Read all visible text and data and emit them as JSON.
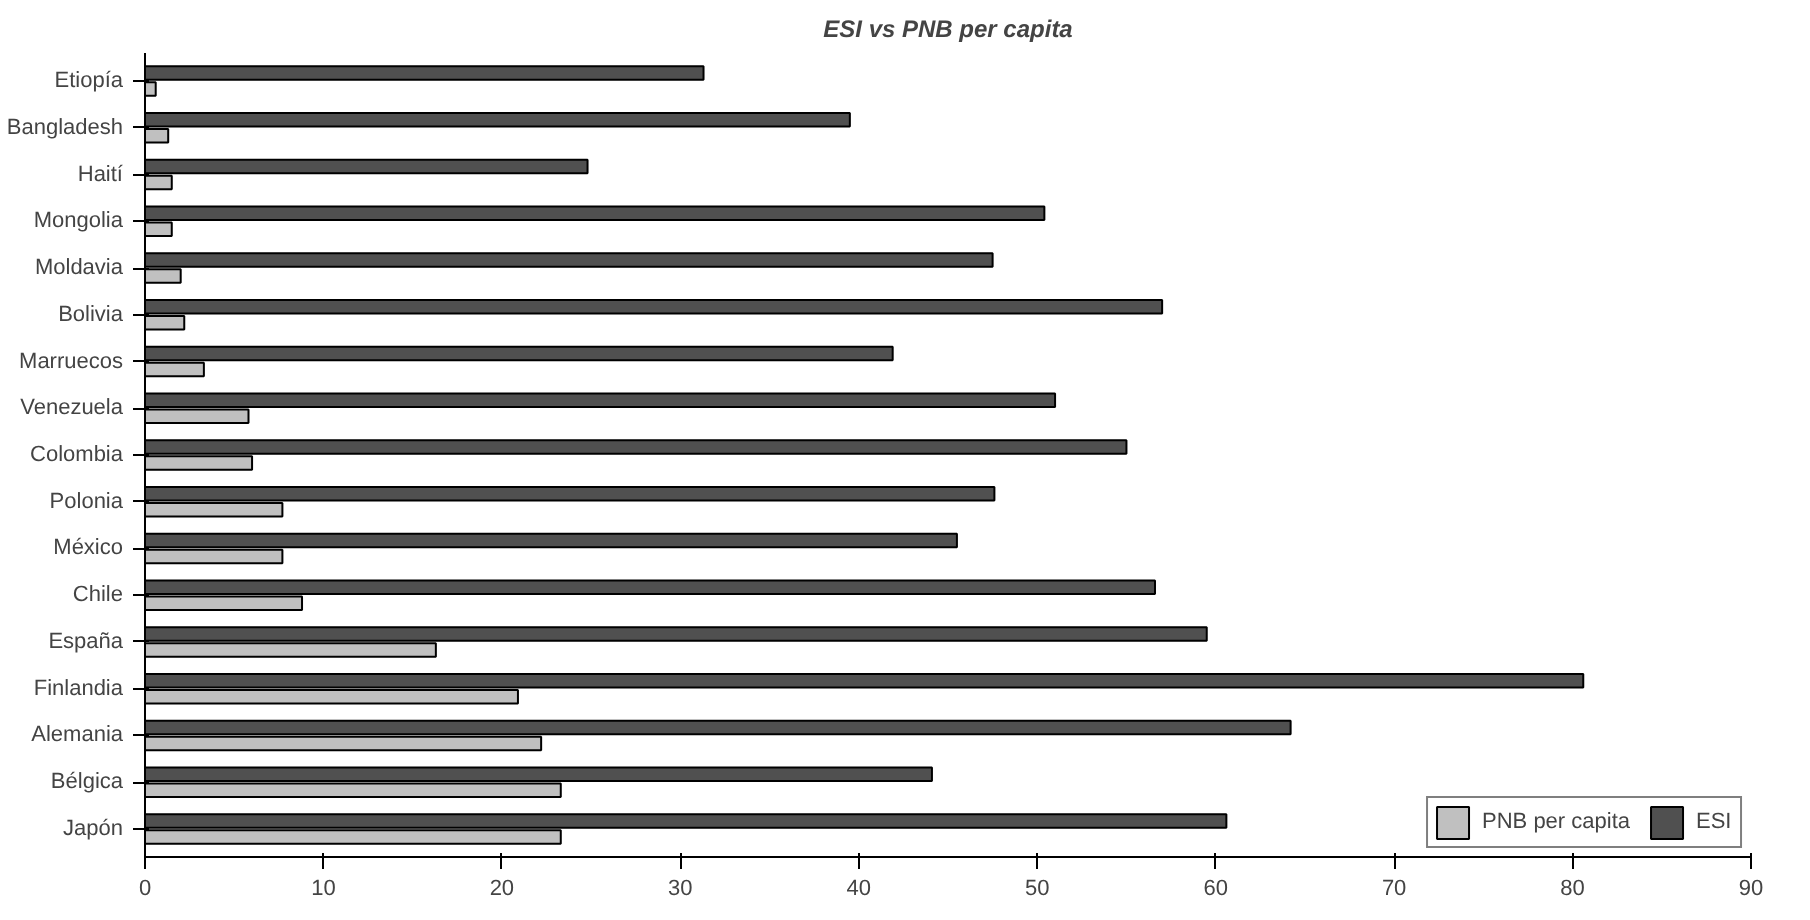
{
  "chart_data": {
    "type": "bar",
    "orientation": "horizontal",
    "title": "ESI vs PNB per capita",
    "categories": [
      "Etiopía",
      "Bangladesh",
      "Haití",
      "Mongolia",
      "Moldavia",
      "Bolivia",
      "Marruecos",
      "Venezuela",
      "Colombia",
      "Polonia",
      "México",
      "Chile",
      "España",
      "Finlandia",
      "Alemania",
      "Bélgica",
      "Japón"
    ],
    "series": [
      {
        "name": "PNB per capita",
        "color": "#c0c0c0",
        "values": [
          0.6,
          1.3,
          1.5,
          1.5,
          2.0,
          2.2,
          3.3,
          5.8,
          6.0,
          7.7,
          7.7,
          8.8,
          16.3,
          20.9,
          22.2,
          23.3,
          23.3
        ]
      },
      {
        "name": "ESI",
        "color": "#505050",
        "values": [
          31.3,
          39.5,
          24.8,
          50.4,
          47.5,
          57.0,
          41.9,
          51.0,
          55.0,
          47.6,
          45.5,
          56.6,
          59.5,
          80.6,
          64.2,
          44.1,
          60.6
        ]
      }
    ],
    "xlim": [
      0,
      90
    ],
    "xticks": [
      0,
      10,
      20,
      30,
      40,
      50,
      60,
      70,
      80,
      90
    ],
    "grid": false,
    "legend": "bottom right"
  }
}
